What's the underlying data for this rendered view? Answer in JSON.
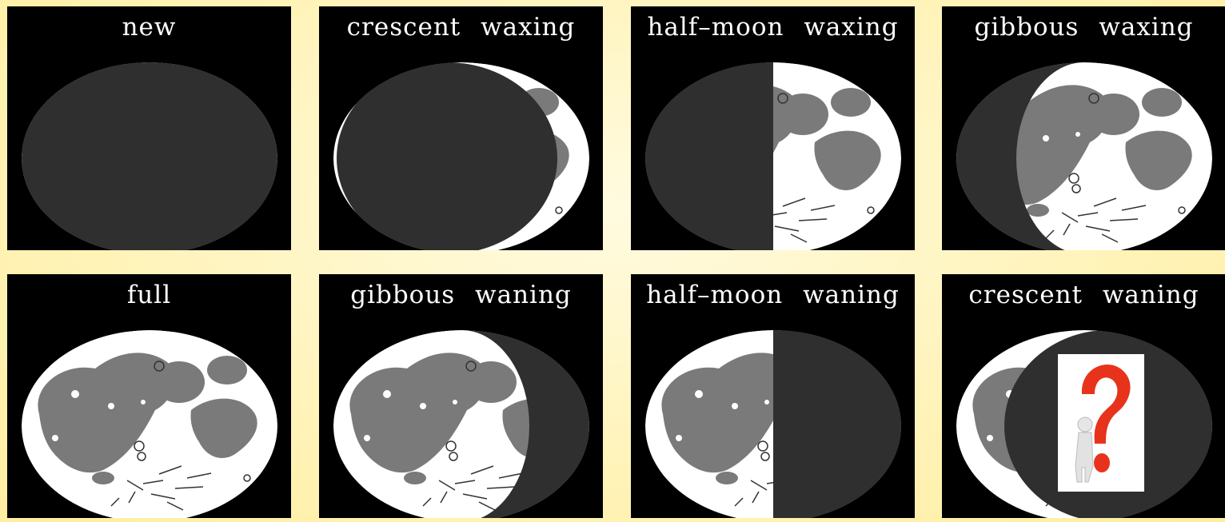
{
  "phases": [
    {
      "label": "new",
      "lit": "none"
    },
    {
      "label": "crescent  waxing",
      "lit": "crescent-right"
    },
    {
      "label": "half–moon  waxing",
      "lit": "half-right"
    },
    {
      "label": "gibbous  waxing",
      "lit": "gibbous-right"
    },
    {
      "label": "full",
      "lit": "full"
    },
    {
      "label": "gibbous  waning",
      "lit": "gibbous-left"
    },
    {
      "label": "half–moon  waning",
      "lit": "half-left"
    },
    {
      "label": "crescent  waning",
      "lit": "crescent-left"
    }
  ],
  "colors": {
    "background": "#fff3b8",
    "panel": "#000000",
    "shadow": "#2f2f2f",
    "moon_light": "#ffffff",
    "maria": "#7a7a7a",
    "question_mark": "#e8331c"
  },
  "overlay_icon": "question-mark-figure-icon"
}
